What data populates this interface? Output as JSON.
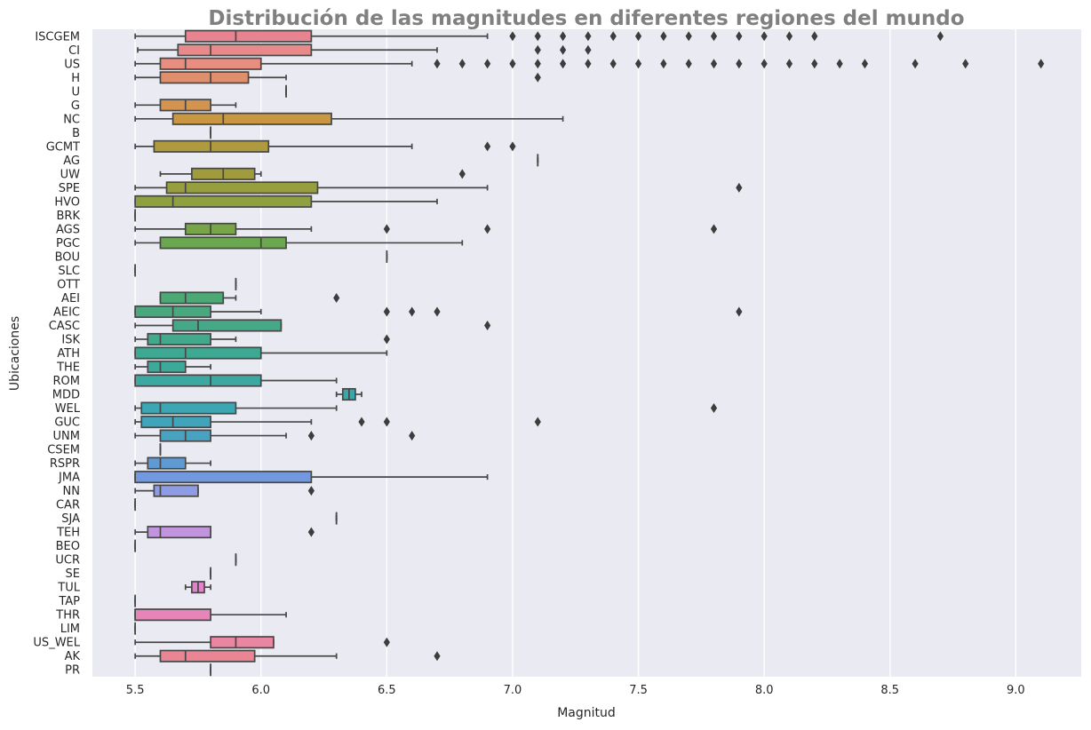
{
  "chart_data": {
    "type": "boxplot",
    "orientation": "horizontal",
    "title": "Distribución de las magnitudes en diferentes regiones del mundo",
    "xlabel": "Magnitud",
    "ylabel": "Ubicaciones",
    "xlim": [
      5.33,
      9.26
    ],
    "xticks": [
      5.5,
      6.0,
      6.5,
      7.0,
      7.5,
      8.0,
      8.5,
      9.0
    ],
    "xtick_labels": [
      "5.5",
      "6.0",
      "6.5",
      "7.0",
      "7.5",
      "8.0",
      "8.5",
      "9.0"
    ],
    "grid": true,
    "legend": "none",
    "categories": [
      "ISCGEM",
      "CI",
      "US",
      "H",
      "U",
      "G",
      "NC",
      "B",
      "GCMT",
      "AG",
      "UW",
      "SPE",
      "HVO",
      "BRK",
      "AGS",
      "PGC",
      "BOU",
      "SLC",
      "OTT",
      "AEI",
      "AEIC",
      "CASC",
      "ISK",
      "ATH",
      "THE",
      "ROM",
      "MDD",
      "WEL",
      "GUC",
      "UNM",
      "CSEM",
      "RSPR",
      "JMA",
      "NN",
      "CAR",
      "SJA",
      "TEH",
      "BEO",
      "UCR",
      "SE",
      "TUL",
      "TAP",
      "THR",
      "LIM",
      "US_WEL",
      "AK",
      "PR"
    ],
    "colors": [
      "#e8838f",
      "#e98a8a",
      "#e88d80",
      "#e08f6c",
      "#dc915c",
      "#d4934e",
      "#c99642",
      "#bd983f",
      "#b09a3e",
      "#a89c3e",
      "#a09c3e",
      "#969e3e",
      "#8ea03f",
      "#84a242",
      "#78a547",
      "#6aa74e",
      "#5ea85a",
      "#55a965",
      "#4ea86d",
      "#4ca874",
      "#4aa87f",
      "#45a886",
      "#42a98d",
      "#3ea993",
      "#3caa9a",
      "#3ba9a1",
      "#3ba7aa",
      "#3ca6b2",
      "#40a4ba",
      "#48a2c2",
      "#549fcb",
      "#5f9bd2",
      "#7299df",
      "#8e9be5",
      "#a59be5",
      "#b398e3",
      "#c293df",
      "#cb8edb",
      "#d58ad5",
      "#dc86cf",
      "#e083c8",
      "#e482bf",
      "#e784b8",
      "#e983ae",
      "#e986a2",
      "#ea8596",
      "#e8848e"
    ],
    "boxes": [
      {
        "label": "ISCGEM",
        "whislo": 5.5,
        "q1": 5.7,
        "med": 5.9,
        "q3": 6.2,
        "whishi": 6.9,
        "fliers": [
          7.0,
          7.1,
          7.2,
          7.3,
          7.4,
          7.5,
          7.6,
          7.7,
          7.8,
          7.9,
          8.0,
          8.1,
          8.2,
          8.7
        ]
      },
      {
        "label": "CI",
        "whislo": 5.51,
        "q1": 5.67,
        "med": 5.8,
        "q3": 6.2,
        "whishi": 6.7,
        "fliers": [
          7.1,
          7.2,
          7.3
        ]
      },
      {
        "label": "US",
        "whislo": 5.5,
        "q1": 5.6,
        "med": 5.7,
        "q3": 6.0,
        "whishi": 6.6,
        "fliers": [
          6.7,
          6.8,
          6.9,
          7.0,
          7.1,
          7.2,
          7.3,
          7.4,
          7.5,
          7.6,
          7.7,
          7.8,
          7.9,
          8.0,
          8.1,
          8.2,
          8.3,
          8.4,
          8.6,
          8.8,
          9.1
        ]
      },
      {
        "label": "H",
        "whislo": 5.5,
        "q1": 5.6,
        "med": 5.8,
        "q3": 5.95,
        "whishi": 6.1,
        "fliers": [
          7.1
        ]
      },
      {
        "label": "U",
        "whislo": 6.1,
        "q1": 6.1,
        "med": 6.1,
        "q3": 6.1,
        "whishi": 6.1,
        "fliers": []
      },
      {
        "label": "G",
        "whislo": 5.5,
        "q1": 5.6,
        "med": 5.7,
        "q3": 5.8,
        "whishi": 5.9,
        "fliers": []
      },
      {
        "label": "NC",
        "whislo": 5.5,
        "q1": 5.65,
        "med": 5.85,
        "q3": 6.28,
        "whishi": 7.2,
        "fliers": []
      },
      {
        "label": "B",
        "whislo": 5.8,
        "q1": 5.8,
        "med": 5.8,
        "q3": 5.8,
        "whishi": 5.8,
        "fliers": []
      },
      {
        "label": "GCMT",
        "whislo": 5.5,
        "q1": 5.575,
        "med": 5.8,
        "q3": 6.03,
        "whishi": 6.6,
        "fliers": [
          6.9,
          7.0
        ]
      },
      {
        "label": "AG",
        "whislo": 7.1,
        "q1": 7.1,
        "med": 7.1,
        "q3": 7.1,
        "whishi": 7.1,
        "fliers": []
      },
      {
        "label": "UW",
        "whislo": 5.6,
        "q1": 5.725,
        "med": 5.85,
        "q3": 5.975,
        "whishi": 6.0,
        "fliers": [
          6.8
        ]
      },
      {
        "label": "SPE",
        "whislo": 5.5,
        "q1": 5.625,
        "med": 5.7,
        "q3": 6.225,
        "whishi": 6.9,
        "fliers": [
          7.9
        ]
      },
      {
        "label": "HVO",
        "whislo": 5.5,
        "q1": 5.5,
        "med": 5.65,
        "q3": 6.2,
        "whishi": 6.7,
        "fliers": []
      },
      {
        "label": "BRK",
        "whislo": 5.5,
        "q1": 5.5,
        "med": 5.5,
        "q3": 5.5,
        "whishi": 5.5,
        "fliers": []
      },
      {
        "label": "AGS",
        "whislo": 5.5,
        "q1": 5.7,
        "med": 5.8,
        "q3": 5.9,
        "whishi": 6.2,
        "fliers": [
          6.5,
          6.9,
          7.8
        ]
      },
      {
        "label": "PGC",
        "whislo": 5.5,
        "q1": 5.6,
        "med": 6.0,
        "q3": 6.1,
        "whishi": 6.8,
        "fliers": []
      },
      {
        "label": "BOU",
        "whislo": 6.5,
        "q1": 6.5,
        "med": 6.5,
        "q3": 6.5,
        "whishi": 6.5,
        "fliers": []
      },
      {
        "label": "SLC",
        "whislo": 5.5,
        "q1": 5.5,
        "med": 5.5,
        "q3": 5.5,
        "whishi": 5.5,
        "fliers": []
      },
      {
        "label": "OTT",
        "whislo": 5.9,
        "q1": 5.9,
        "med": 5.9,
        "q3": 5.9,
        "whishi": 5.9,
        "fliers": []
      },
      {
        "label": "AEI",
        "whislo": 5.6,
        "q1": 5.6,
        "med": 5.7,
        "q3": 5.85,
        "whishi": 5.9,
        "fliers": [
          6.3
        ]
      },
      {
        "label": "AEIC",
        "whislo": 5.5,
        "q1": 5.5,
        "med": 5.65,
        "q3": 5.8,
        "whishi": 6.0,
        "fliers": [
          6.5,
          6.6,
          6.7,
          7.9
        ]
      },
      {
        "label": "CASC",
        "whislo": 5.5,
        "q1": 5.65,
        "med": 5.75,
        "q3": 6.08,
        "whishi": 6.08,
        "fliers": [
          6.9
        ]
      },
      {
        "label": "ISK",
        "whislo": 5.5,
        "q1": 5.55,
        "med": 5.6,
        "q3": 5.8,
        "whishi": 5.9,
        "fliers": [
          6.5
        ]
      },
      {
        "label": "ATH",
        "whislo": 5.5,
        "q1": 5.5,
        "med": 5.7,
        "q3": 6.0,
        "whishi": 6.5,
        "fliers": []
      },
      {
        "label": "THE",
        "whislo": 5.5,
        "q1": 5.55,
        "med": 5.6,
        "q3": 5.7,
        "whishi": 5.8,
        "fliers": []
      },
      {
        "label": "ROM",
        "whislo": 5.5,
        "q1": 5.5,
        "med": 5.8,
        "q3": 6.0,
        "whishi": 6.3,
        "fliers": []
      },
      {
        "label": "MDD",
        "whislo": 6.3,
        "q1": 6.325,
        "med": 6.35,
        "q3": 6.375,
        "whishi": 6.4,
        "fliers": []
      },
      {
        "label": "WEL",
        "whislo": 5.5,
        "q1": 5.525,
        "med": 5.6,
        "q3": 5.9,
        "whishi": 6.3,
        "fliers": [
          7.8
        ]
      },
      {
        "label": "GUC",
        "whislo": 5.5,
        "q1": 5.525,
        "med": 5.65,
        "q3": 5.8,
        "whishi": 6.2,
        "fliers": [
          6.4,
          6.5,
          7.1
        ]
      },
      {
        "label": "UNM",
        "whislo": 5.5,
        "q1": 5.6,
        "med": 5.7,
        "q3": 5.8,
        "whishi": 6.1,
        "fliers": [
          6.2,
          6.6
        ]
      },
      {
        "label": "CSEM",
        "whislo": 5.6,
        "q1": 5.6,
        "med": 5.6,
        "q3": 5.6,
        "whishi": 5.6,
        "fliers": []
      },
      {
        "label": "RSPR",
        "whislo": 5.5,
        "q1": 5.55,
        "med": 5.6,
        "q3": 5.7,
        "whishi": 5.8,
        "fliers": []
      },
      {
        "label": "JMA",
        "whislo": 5.5,
        "q1": 5.5,
        "med": 5.5,
        "q3": 6.2,
        "whishi": 6.9,
        "fliers": []
      },
      {
        "label": "NN",
        "whislo": 5.5,
        "q1": 5.575,
        "med": 5.6,
        "q3": 5.75,
        "whishi": 5.75,
        "fliers": [
          6.2
        ]
      },
      {
        "label": "CAR",
        "whislo": 5.5,
        "q1": 5.5,
        "med": 5.5,
        "q3": 5.5,
        "whishi": 5.5,
        "fliers": []
      },
      {
        "label": "SJA",
        "whislo": 6.3,
        "q1": 6.3,
        "med": 6.3,
        "q3": 6.3,
        "whishi": 6.3,
        "fliers": []
      },
      {
        "label": "TEH",
        "whislo": 5.5,
        "q1": 5.55,
        "med": 5.6,
        "q3": 5.8,
        "whishi": 5.8,
        "fliers": [
          6.2
        ]
      },
      {
        "label": "BEO",
        "whislo": 5.5,
        "q1": 5.5,
        "med": 5.5,
        "q3": 5.5,
        "whishi": 5.5,
        "fliers": []
      },
      {
        "label": "UCR",
        "whislo": 5.9,
        "q1": 5.9,
        "med": 5.9,
        "q3": 5.9,
        "whishi": 5.9,
        "fliers": []
      },
      {
        "label": "SE",
        "whislo": 5.8,
        "q1": 5.8,
        "med": 5.8,
        "q3": 5.8,
        "whishi": 5.8,
        "fliers": []
      },
      {
        "label": "TUL",
        "whislo": 5.7,
        "q1": 5.725,
        "med": 5.75,
        "q3": 5.775,
        "whishi": 5.8,
        "fliers": []
      },
      {
        "label": "TAP",
        "whislo": 5.5,
        "q1": 5.5,
        "med": 5.5,
        "q3": 5.5,
        "whishi": 5.5,
        "fliers": []
      },
      {
        "label": "THR",
        "whislo": 5.5,
        "q1": 5.5,
        "med": 5.5,
        "q3": 5.8,
        "whishi": 6.1,
        "fliers": []
      },
      {
        "label": "LIM",
        "whislo": 5.5,
        "q1": 5.5,
        "med": 5.5,
        "q3": 5.5,
        "whishi": 5.5,
        "fliers": []
      },
      {
        "label": "US_WEL",
        "whislo": 5.5,
        "q1": 5.8,
        "med": 5.9,
        "q3": 6.05,
        "whishi": 6.05,
        "fliers": [
          6.5
        ]
      },
      {
        "label": "AK",
        "whislo": 5.5,
        "q1": 5.6,
        "med": 5.7,
        "q3": 5.975,
        "whishi": 6.3,
        "fliers": [
          6.7
        ]
      },
      {
        "label": "PR",
        "whislo": 5.8,
        "q1": 5.8,
        "med": 5.8,
        "q3": 5.8,
        "whishi": 5.8,
        "fliers": []
      }
    ]
  }
}
